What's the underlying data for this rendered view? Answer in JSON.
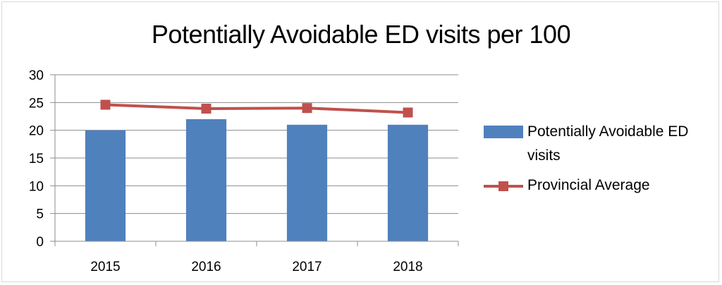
{
  "chart_data": {
    "type": "bar",
    "title": "Potentially Avoidable ED visits per 100",
    "categories": [
      "2015",
      "2016",
      "2017",
      "2018"
    ],
    "series": [
      {
        "name": "Potentially Avoidable ED visits",
        "type": "bar",
        "color": "#4f81bd",
        "values": [
          20,
          22,
          21,
          21
        ]
      },
      {
        "name": "Provincial Average",
        "type": "line",
        "color": "#c0504d",
        "values": [
          24.6,
          23.9,
          24.0,
          23.2
        ]
      }
    ],
    "ylim": [
      0,
      30
    ],
    "yticks": [
      "0",
      "5",
      "10",
      "15",
      "20",
      "25",
      "30"
    ],
    "grid": true,
    "legend": "right"
  }
}
